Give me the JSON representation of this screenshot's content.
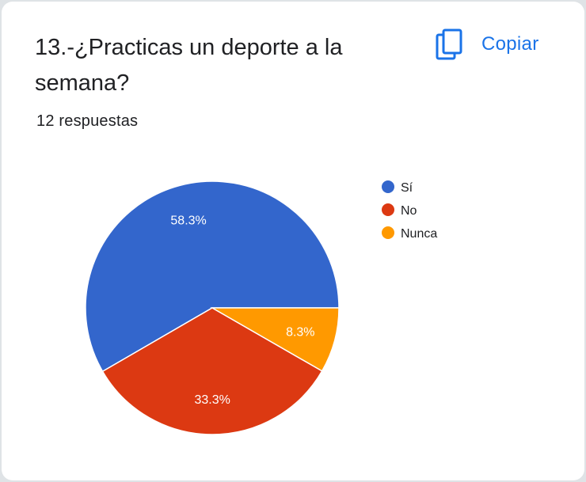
{
  "question": {
    "title": "13.-¿Practicas un deporte a la semana?",
    "responses": "12 respuestas"
  },
  "copy_button": {
    "label": "Copiar",
    "icon": "copy-icon"
  },
  "colors": {
    "accent": "#1a73e8"
  },
  "chart_data": {
    "type": "pie",
    "categories": [
      "Sí",
      "No",
      "Nunca"
    ],
    "values": [
      58.3,
      33.3,
      8.3
    ],
    "counts": [
      7,
      4,
      1
    ],
    "data_labels": [
      "58.3%",
      "33.3%",
      "8.3%"
    ],
    "colors": [
      "#3366cc",
      "#dc3912",
      "#ff9900"
    ],
    "start_direction": "3 o'clock, counterclockwise",
    "legend": {
      "placement": "right",
      "entries": [
        "Sí",
        "No",
        "Nunca"
      ]
    }
  }
}
